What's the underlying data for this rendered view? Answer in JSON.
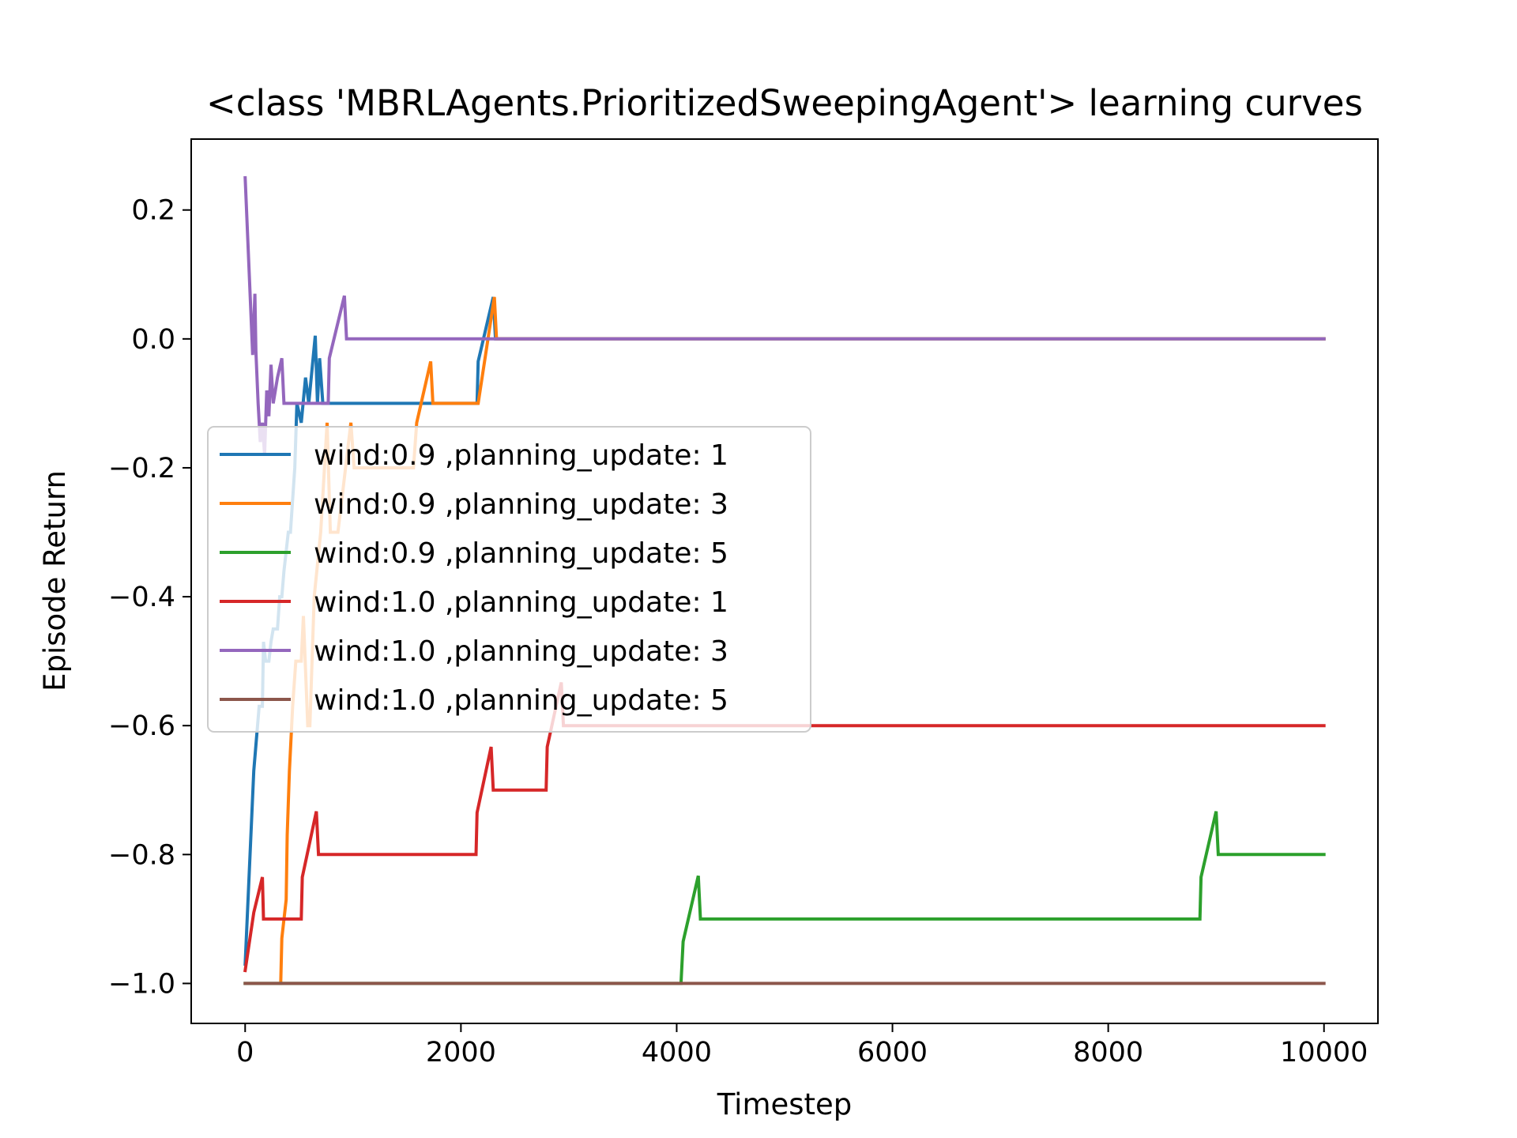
{
  "chart_data": {
    "type": "line",
    "title": "<class 'MBRLAgents.PrioritizedSweepingAgent'> learning curves",
    "xlabel": "Timestep",
    "ylabel": "Episode Return",
    "xlim": [
      -500,
      10500
    ],
    "ylim": [
      -1.062,
      0.31
    ],
    "xticks": [
      0,
      2000,
      4000,
      6000,
      8000,
      10000
    ],
    "xtick_labels": [
      "0",
      "2000",
      "4000",
      "6000",
      "8000",
      "10000"
    ],
    "yticks": [
      -1.0,
      -0.8,
      -0.6,
      -0.4,
      -0.2,
      0.0,
      0.2
    ],
    "ytick_labels": [
      "−1.0",
      "−0.8",
      "−0.6",
      "−0.4",
      "−0.2",
      "0.0",
      "0.2"
    ],
    "grid": false,
    "legend_position": "center-left",
    "series": [
      {
        "name": "wind:0.9 ,planning_update: 1",
        "color": "#1f77b4",
        "points": [
          [
            0,
            -0.97
          ],
          [
            80,
            -0.67
          ],
          [
            130,
            -0.57
          ],
          [
            160,
            -0.57
          ],
          [
            170,
            -0.47
          ],
          [
            190,
            -0.5
          ],
          [
            220,
            -0.5
          ],
          [
            240,
            -0.47
          ],
          [
            260,
            -0.45
          ],
          [
            300,
            -0.45
          ],
          [
            320,
            -0.4
          ],
          [
            340,
            -0.4
          ],
          [
            360,
            -0.36
          ],
          [
            400,
            -0.3
          ],
          [
            420,
            -0.3
          ],
          [
            460,
            -0.2
          ],
          [
            480,
            -0.1
          ],
          [
            520,
            -0.13
          ],
          [
            560,
            -0.06
          ],
          [
            590,
            -0.1
          ],
          [
            650,
            0.005
          ],
          [
            670,
            -0.1
          ],
          [
            690,
            -0.03
          ],
          [
            720,
            -0.1
          ],
          [
            2150,
            -0.1
          ],
          [
            2160,
            -0.035
          ],
          [
            2300,
            0.065
          ],
          [
            2320,
            0.0
          ],
          [
            10000,
            0.0
          ]
        ]
      },
      {
        "name": "wind:0.9 ,planning_update: 3",
        "color": "#ff7f0e",
        "points": [
          [
            330,
            -1.0
          ],
          [
            340,
            -0.93
          ],
          [
            380,
            -0.87
          ],
          [
            390,
            -0.77
          ],
          [
            410,
            -0.67
          ],
          [
            440,
            -0.57
          ],
          [
            470,
            -0.5
          ],
          [
            520,
            -0.5
          ],
          [
            540,
            -0.43
          ],
          [
            580,
            -0.6
          ],
          [
            600,
            -0.6
          ],
          [
            640,
            -0.4
          ],
          [
            700,
            -0.3
          ],
          [
            760,
            -0.13
          ],
          [
            790,
            -0.3
          ],
          [
            860,
            -0.3
          ],
          [
            910,
            -0.23
          ],
          [
            980,
            -0.13
          ],
          [
            1010,
            -0.2
          ],
          [
            1560,
            -0.2
          ],
          [
            1590,
            -0.13
          ],
          [
            1720,
            -0.035
          ],
          [
            1740,
            -0.1
          ],
          [
            2160,
            -0.1
          ],
          [
            2310,
            0.065
          ],
          [
            2330,
            0.0
          ],
          [
            10000,
            0.0
          ]
        ]
      },
      {
        "name": "wind:0.9 ,planning_update: 5",
        "color": "#2ca02c",
        "points": [
          [
            0,
            -1.0
          ],
          [
            4040,
            -1.0
          ],
          [
            4060,
            -0.935
          ],
          [
            4200,
            -0.833
          ],
          [
            4220,
            -0.9
          ],
          [
            8850,
            -0.9
          ],
          [
            8860,
            -0.835
          ],
          [
            9000,
            -0.733
          ],
          [
            9020,
            -0.8
          ],
          [
            10000,
            -0.8
          ]
        ]
      },
      {
        "name": "wind:1.0 ,planning_update: 1",
        "color": "#d62728",
        "points": [
          [
            0,
            -0.98
          ],
          [
            80,
            -0.89
          ],
          [
            160,
            -0.835
          ],
          [
            170,
            -0.9
          ],
          [
            520,
            -0.9
          ],
          [
            530,
            -0.835
          ],
          [
            660,
            -0.733
          ],
          [
            680,
            -0.8
          ],
          [
            2140,
            -0.8
          ],
          [
            2150,
            -0.735
          ],
          [
            2280,
            -0.633
          ],
          [
            2300,
            -0.7
          ],
          [
            2790,
            -0.7
          ],
          [
            2800,
            -0.633
          ],
          [
            2930,
            -0.533
          ],
          [
            2950,
            -0.6
          ],
          [
            10000,
            -0.6
          ]
        ]
      },
      {
        "name": "wind:1.0 ,planning_update: 3",
        "color": "#9467bd",
        "points": [
          [
            0,
            0.25
          ],
          [
            70,
            -0.025
          ],
          [
            90,
            0.07
          ],
          [
            100,
            -0.02
          ],
          [
            120,
            -0.1
          ],
          [
            140,
            -0.16
          ],
          [
            160,
            -0.13
          ],
          [
            180,
            -0.18
          ],
          [
            200,
            -0.08
          ],
          [
            220,
            -0.12
          ],
          [
            240,
            -0.04
          ],
          [
            260,
            -0.1
          ],
          [
            300,
            -0.06
          ],
          [
            340,
            -0.03
          ],
          [
            360,
            -0.1
          ],
          [
            770,
            -0.1
          ],
          [
            780,
            -0.03
          ],
          [
            920,
            0.067
          ],
          [
            940,
            0.0
          ],
          [
            10000,
            0.0
          ]
        ]
      },
      {
        "name": "wind:1.0 ,planning_update: 5",
        "color": "#8c564b",
        "points": [
          [
            0,
            -1.0
          ],
          [
            10000,
            -1.0
          ]
        ]
      }
    ]
  }
}
